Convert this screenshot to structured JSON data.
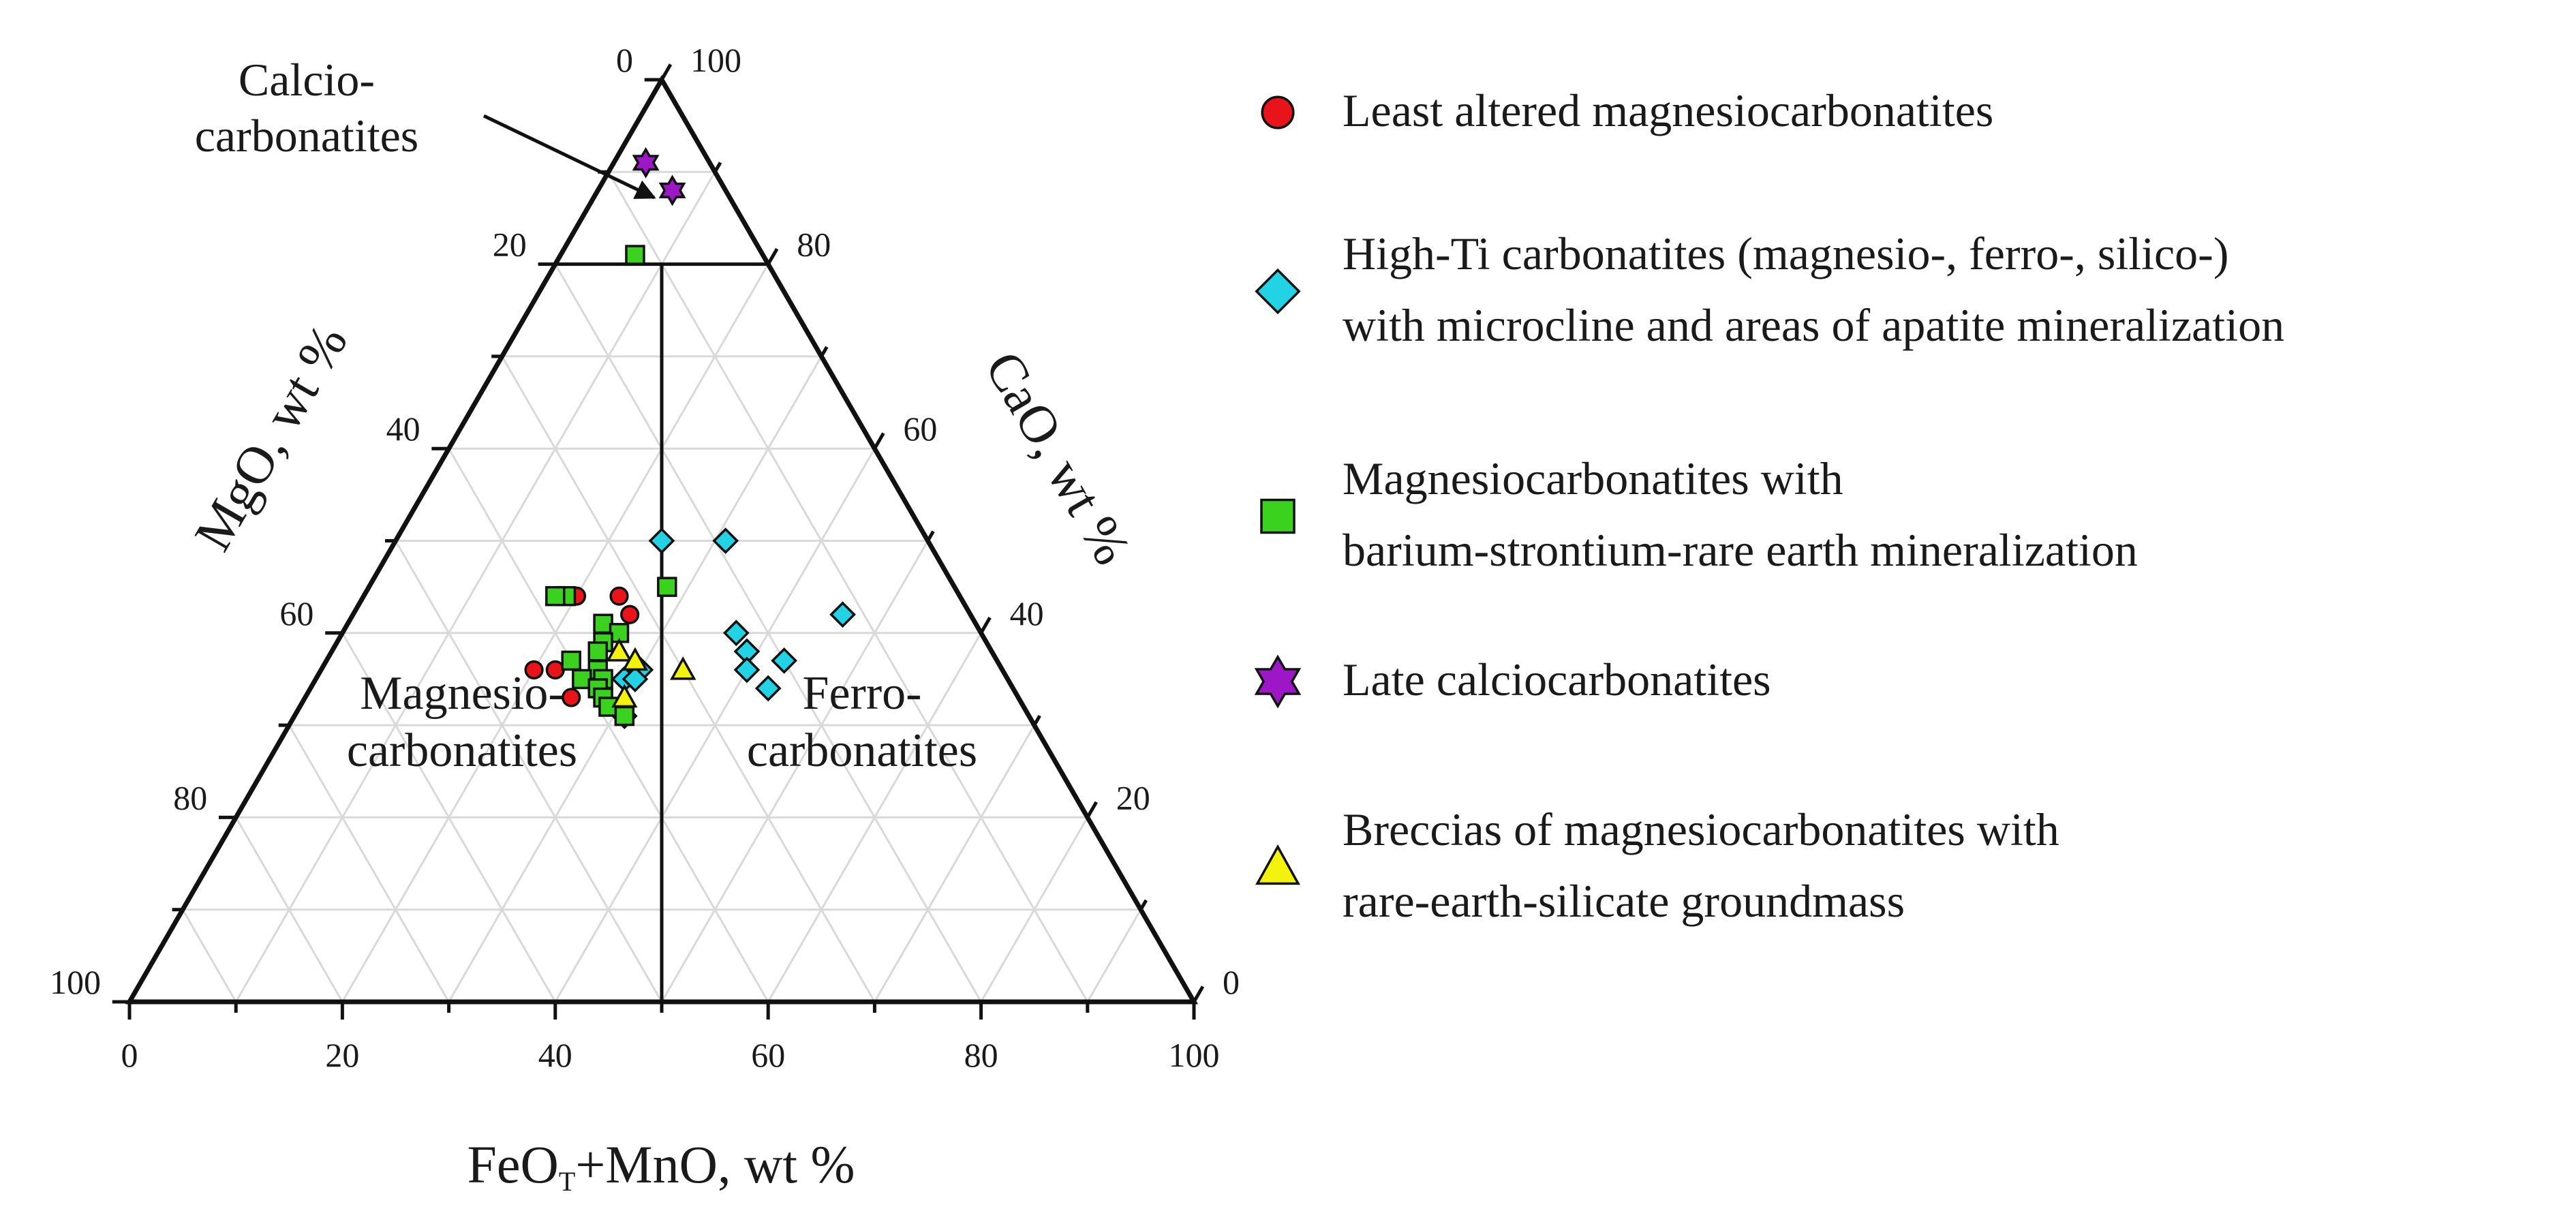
{
  "chart_data": {
    "type": "scatter",
    "diagram": "ternary",
    "apices": {
      "top": "CaO, wt %",
      "bottom_left": "MgO, wt %",
      "bottom_right": "FeOT+MnO, wt %"
    },
    "axes": {
      "bottom": {
        "label_main": "FeO",
        "label_sub": "T",
        "label_rest": "+MnO, wt %",
        "ticks": [
          "0",
          "20",
          "40",
          "60",
          "80",
          "100"
        ]
      },
      "left": {
        "label": "MgO, wt %",
        "ticks": [
          "0",
          "20",
          "40",
          "60",
          "80",
          "100"
        ]
      },
      "right": {
        "label": "CaO, wt %",
        "ticks": [
          "100",
          "80",
          "60",
          "40",
          "20",
          "0"
        ]
      }
    },
    "grid": true,
    "grid_step": 10,
    "regions": {
      "calcio": "Calcio-\ncarbonatites",
      "magnesio": "Magnesio-\ncarbonatites",
      "ferro": "Ferro-\ncarbonatites"
    },
    "boundaries": [
      {
        "name": "calcio-boundary",
        "cao": 80
      },
      {
        "name": "magnesio-ferro-boundary",
        "feo_share_of_feo_plus_mgo": 0.5
      }
    ],
    "legend_position": "right",
    "series": [
      {
        "name": "Least altered magnesiocarbonatites",
        "marker": "circle",
        "color": "#e8141a",
        "points": [
          {
            "cao": 44,
            "mgo": 37,
            "feo": 19
          },
          {
            "cao": 44,
            "mgo": 36,
            "feo": 20
          },
          {
            "cao": 44,
            "mgo": 32,
            "feo": 24
          },
          {
            "cao": 42,
            "mgo": 32,
            "feo": 26
          },
          {
            "cao": 36,
            "mgo": 44,
            "feo": 20
          },
          {
            "cao": 36,
            "mgo": 42,
            "feo": 22
          },
          {
            "cao": 35,
            "mgo": 39,
            "feo": 26
          },
          {
            "cao": 33,
            "mgo": 42,
            "feo": 25
          }
        ]
      },
      {
        "name": "High-Ti carbonatites (magnesio-, ferro-, silico-) with microcline and areas of apatite mineralization",
        "marker": "diamond",
        "color": "#22d3e6",
        "points": [
          {
            "cao": 50,
            "mgo": 25,
            "feo": 25
          },
          {
            "cao": 50,
            "mgo": 19,
            "feo": 31
          },
          {
            "cao": 42,
            "mgo": 12,
            "feo": 46
          },
          {
            "cao": 40,
            "mgo": 23,
            "feo": 37
          },
          {
            "cao": 38,
            "mgo": 23,
            "feo": 39
          },
          {
            "cao": 37,
            "mgo": 20,
            "feo": 43
          },
          {
            "cao": 36,
            "mgo": 24,
            "feo": 40
          },
          {
            "cao": 36,
            "mgo": 34,
            "feo": 30
          },
          {
            "cao": 35,
            "mgo": 36,
            "feo": 29
          },
          {
            "cao": 35,
            "mgo": 35,
            "feo": 30
          },
          {
            "cao": 34,
            "mgo": 23,
            "feo": 43
          },
          {
            "cao": 31,
            "mgo": 38,
            "feo": 31
          }
        ]
      },
      {
        "name": "Magnesiocarbonatites with\nbarium-strontium-rare earth mineralization",
        "marker": "square",
        "color": "#3ad11f",
        "points": [
          {
            "cao": 81,
            "mgo": 12,
            "feo": 7
          },
          {
            "cao": 45,
            "mgo": 27,
            "feo": 28
          },
          {
            "cao": 44,
            "mgo": 37,
            "feo": 19
          },
          {
            "cao": 44,
            "mgo": 38,
            "feo": 18
          },
          {
            "cao": 41,
            "mgo": 35,
            "feo": 24
          },
          {
            "cao": 40,
            "mgo": 34,
            "feo": 26
          },
          {
            "cao": 39,
            "mgo": 36,
            "feo": 25
          },
          {
            "cao": 38,
            "mgo": 37,
            "feo": 25
          },
          {
            "cao": 37,
            "mgo": 40,
            "feo": 23
          },
          {
            "cao": 36,
            "mgo": 38,
            "feo": 26
          },
          {
            "cao": 35,
            "mgo": 40,
            "feo": 25
          },
          {
            "cao": 35,
            "mgo": 38,
            "feo": 27
          },
          {
            "cao": 34,
            "mgo": 39,
            "feo": 27
          },
          {
            "cao": 33,
            "mgo": 39,
            "feo": 28
          },
          {
            "cao": 32,
            "mgo": 39,
            "feo": 29
          },
          {
            "cao": 31,
            "mgo": 38,
            "feo": 31
          }
        ]
      },
      {
        "name": "Late calciocarbonatites",
        "marker": "star",
        "color": "#9d17c6",
        "points": [
          {
            "cao": 91,
            "mgo": 6,
            "feo": 3
          },
          {
            "cao": 88,
            "mgo": 5,
            "feo": 7
          }
        ]
      },
      {
        "name": "Breccias of magnesiocarbonatites with\nrare-earth-silicate groundmass",
        "marker": "triangle",
        "color": "#f2f20c",
        "points": [
          {
            "cao": 38,
            "mgo": 35,
            "feo": 27
          },
          {
            "cao": 37,
            "mgo": 34,
            "feo": 29
          },
          {
            "cao": 36,
            "mgo": 30,
            "feo": 34
          },
          {
            "cao": 33,
            "mgo": 37,
            "feo": 30
          }
        ]
      }
    ]
  }
}
